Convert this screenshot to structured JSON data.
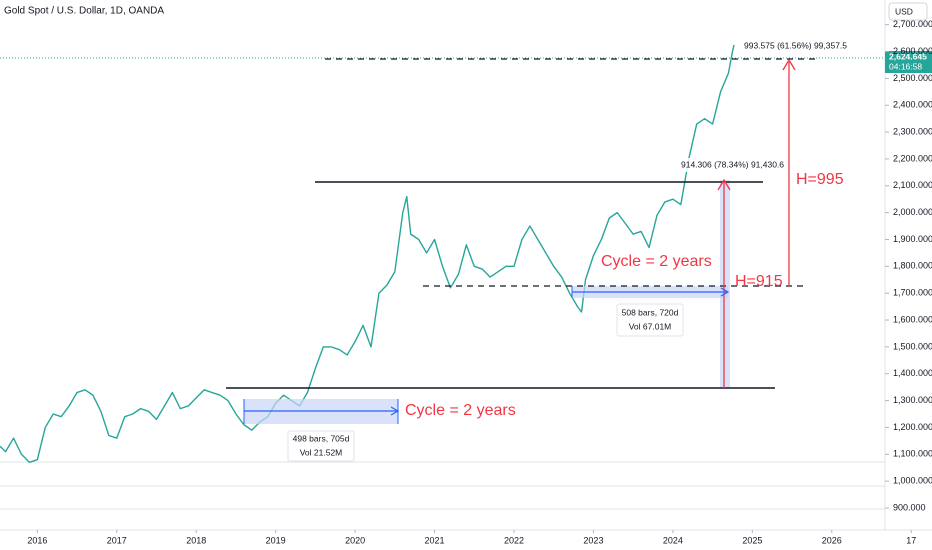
{
  "chart_data": {
    "type": "line",
    "title": "Gold Spot / U.S. Dollar, 1D, OANDA",
    "currency": "USD",
    "price_label": "2,624.645",
    "countdown": "04:16:58",
    "color": "#26a69a",
    "x": [
      2015.53,
      2015.6,
      2015.7,
      2015.8,
      2015.9,
      2016.0,
      2016.1,
      2016.2,
      2016.3,
      2016.4,
      2016.5,
      2016.6,
      2016.7,
      2016.8,
      2016.9,
      2017.0,
      2017.1,
      2017.2,
      2017.3,
      2017.4,
      2017.5,
      2017.6,
      2017.7,
      2017.8,
      2017.9,
      2018.0,
      2018.1,
      2018.2,
      2018.3,
      2018.4,
      2018.5,
      2018.6,
      2018.7,
      2018.8,
      2018.9,
      2019.0,
      2019.1,
      2019.2,
      2019.3,
      2019.4,
      2019.5,
      2019.6,
      2019.7,
      2019.8,
      2019.9,
      2020.0,
      2020.1,
      2020.2,
      2020.3,
      2020.4,
      2020.5,
      2020.6,
      2020.65,
      2020.7,
      2020.8,
      2020.9,
      2021.0,
      2021.1,
      2021.2,
      2021.3,
      2021.4,
      2021.5,
      2021.6,
      2021.7,
      2021.8,
      2021.9,
      2022.0,
      2022.1,
      2022.2,
      2022.3,
      2022.4,
      2022.5,
      2022.6,
      2022.7,
      2022.8,
      2022.85,
      2022.9,
      2023.0,
      2023.1,
      2023.2,
      2023.3,
      2023.4,
      2023.5,
      2023.6,
      2023.7,
      2023.8,
      2023.9,
      2024.0,
      2024.1,
      2024.2,
      2024.3,
      2024.4,
      2024.5,
      2024.6,
      2024.7,
      2024.75,
      2024.77
    ],
    "values": [
      1130,
      1110,
      1160,
      1100,
      1070,
      1080,
      1200,
      1250,
      1240,
      1280,
      1330,
      1340,
      1320,
      1260,
      1170,
      1160,
      1240,
      1250,
      1270,
      1260,
      1230,
      1280,
      1330,
      1270,
      1280,
      1310,
      1340,
      1330,
      1320,
      1300,
      1250,
      1210,
      1190,
      1220,
      1240,
      1290,
      1320,
      1300,
      1280,
      1330,
      1420,
      1500,
      1500,
      1490,
      1470,
      1520,
      1580,
      1500,
      1700,
      1730,
      1780,
      2000,
      2060,
      1920,
      1900,
      1850,
      1900,
      1800,
      1720,
      1770,
      1880,
      1800,
      1790,
      1760,
      1780,
      1800,
      1800,
      1900,
      1950,
      1900,
      1850,
      1800,
      1760,
      1700,
      1650,
      1630,
      1750,
      1840,
      1900,
      1980,
      2000,
      1960,
      1920,
      1930,
      1870,
      1990,
      2040,
      2050,
      2030,
      2200,
      2330,
      2350,
      2330,
      2450,
      2520,
      2600,
      2624.645
    ],
    "xlim": [
      2015.53,
      2026.67
    ],
    "xticks": [
      2016,
      2017,
      2018,
      2019,
      2020,
      2021,
      2022,
      2023,
      2024,
      2025,
      2026,
      {
        "value": 2027,
        "label": "17"
      }
    ],
    "ylim": [
      818,
      2792
    ],
    "yticks": [
      {
        "value": 900,
        "label": "900.000"
      },
      {
        "value": 1000,
        "label": "1,000.000"
      },
      {
        "value": 1100,
        "label": "1,100.000"
      },
      {
        "value": 1200,
        "label": "1,200.000"
      },
      {
        "value": 1300,
        "label": "1,300.000"
      },
      {
        "value": 1400,
        "label": "1,400.000"
      },
      {
        "value": 1500,
        "label": "1,500.000"
      },
      {
        "value": 1600,
        "label": "1,600.000"
      },
      {
        "value": 1700,
        "label": "1,700.000"
      },
      {
        "value": 1800,
        "label": "1,800.000"
      },
      {
        "value": 1900,
        "label": "1,900.000"
      },
      {
        "value": 2000,
        "label": "2,000.000"
      },
      {
        "value": 2100,
        "label": "2,100.000"
      },
      {
        "value": 2200,
        "label": "2,200.000"
      },
      {
        "value": 2300,
        "label": "2,300.000"
      },
      {
        "value": 2400,
        "label": "2,400.000"
      },
      {
        "value": 2500,
        "label": "2,500.000"
      },
      {
        "value": 2600,
        "label": "2,600.000"
      },
      {
        "value": 2700,
        "label": "2,700.000"
      }
    ],
    "grid": false,
    "annotations": {
      "measure_top": "993.575 (61.56%) 99,357.5",
      "measure_mid": "914.306 (78.34%) 91,430.6",
      "h_top": "H=995",
      "h_mid": "H=915",
      "cycle_upper": "Cycle = 2 years",
      "cycle_lower": "Cycle = 2 years",
      "range_upper_bars": "508 bars, 720d",
      "range_upper_vol": "Vol 67.01M",
      "range_lower_bars": "498 bars, 705d",
      "range_lower_vol": "Vol 21.52M"
    }
  }
}
